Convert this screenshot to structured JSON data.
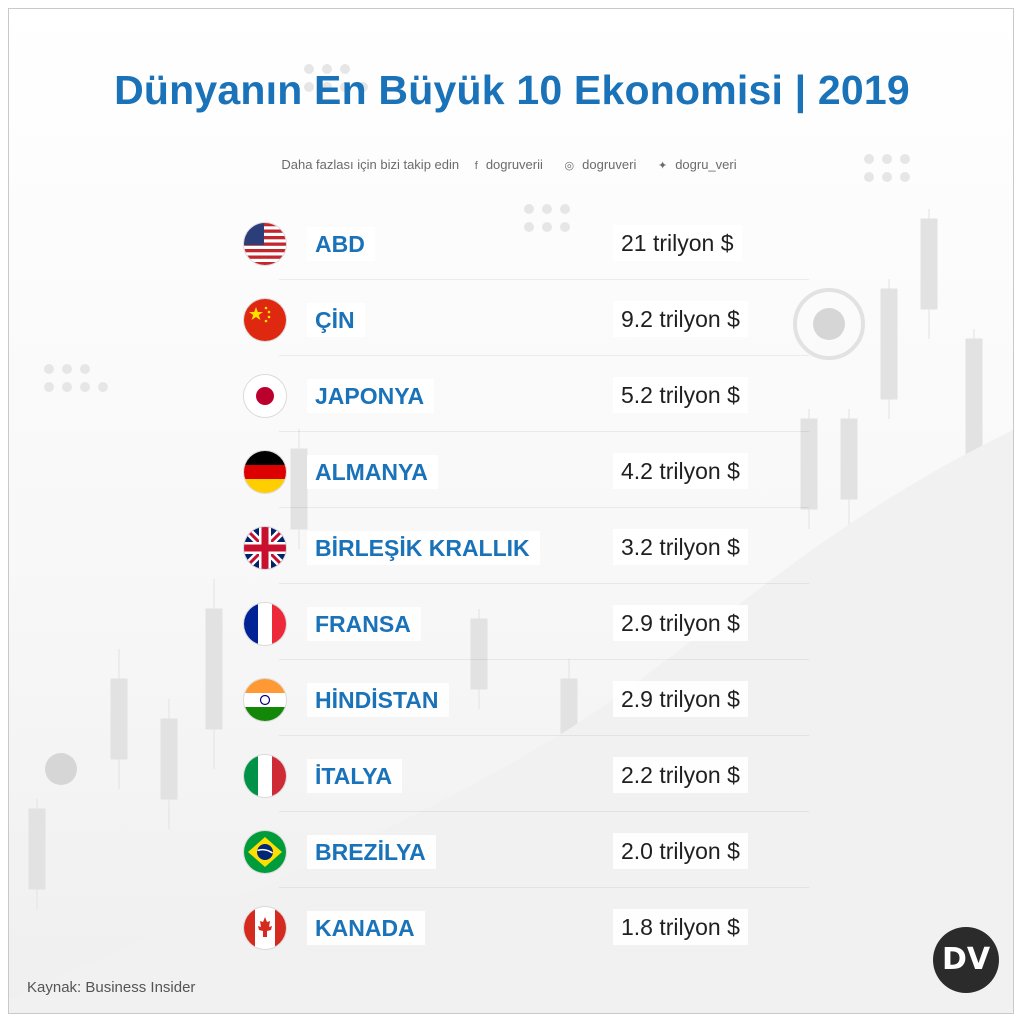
{
  "title": "Dünyanın En Büyük 10 Ekonomisi | 2019",
  "follow": {
    "text": "Daha fazlası için bizi takip edin",
    "facebook": "dogruverii",
    "instagram": "dogruveri",
    "twitter": "dogru_veri"
  },
  "icons": {
    "facebook": "facebook-icon",
    "instagram": "instagram-icon",
    "twitter": "twitter-icon"
  },
  "colors": {
    "accent": "#1a72b9",
    "text": "#1f1f1f"
  },
  "rows": [
    {
      "country": "ABD",
      "value": "21 trilyon $",
      "flag": "usa-flag-icon"
    },
    {
      "country": "ÇİN",
      "value": "9.2 trilyon $",
      "flag": "china-flag-icon"
    },
    {
      "country": "JAPONYA",
      "value": "5.2 trilyon $",
      "flag": "japan-flag-icon"
    },
    {
      "country": "ALMANYA",
      "value": "4.2 trilyon $",
      "flag": "germany-flag-icon"
    },
    {
      "country": "BİRLEŞİK KRALLIK",
      "value": "3.2 trilyon $",
      "flag": "uk-flag-icon"
    },
    {
      "country": "FRANSA",
      "value": "2.9 trilyon $",
      "flag": "france-flag-icon"
    },
    {
      "country": "HİNDİSTAN",
      "value": "2.9 trilyon $",
      "flag": "india-flag-icon"
    },
    {
      "country": "İTALYA",
      "value": "2.2 trilyon $",
      "flag": "italy-flag-icon"
    },
    {
      "country": "BREZİLYA",
      "value": "2.0 trilyon $",
      "flag": "brazil-flag-icon"
    },
    {
      "country": "KANADA",
      "value": "1.8 trilyon $",
      "flag": "canada-flag-icon"
    }
  ],
  "source": "Kaynak: Business Insider",
  "logo": "DV"
}
